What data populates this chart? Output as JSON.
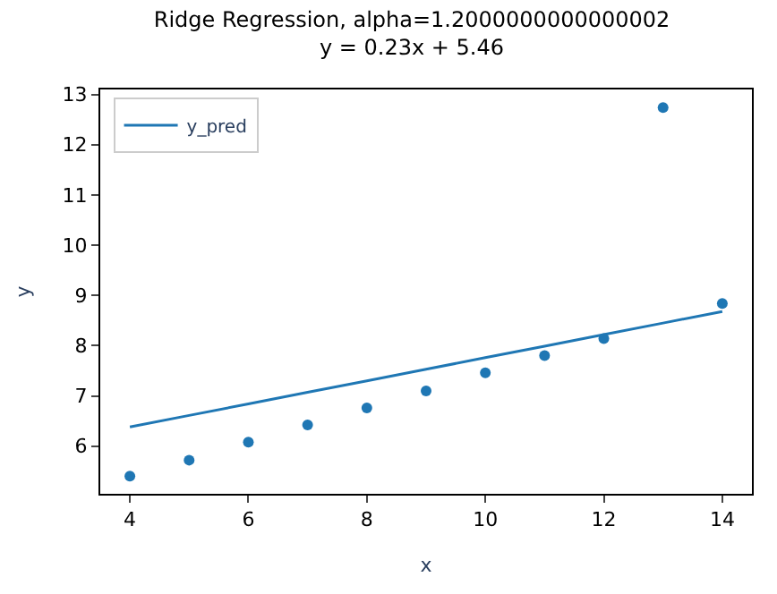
{
  "chart_data": {
    "type": "scatter",
    "title": "Ridge Regression, alpha=1.2000000000000002",
    "subtitle": "y = 0.23x + 5.46",
    "xlabel": "x",
    "ylabel": "y",
    "x": [
      4,
      5,
      6,
      7,
      8,
      9,
      10,
      11,
      12,
      13,
      14
    ],
    "series": [
      {
        "type": "line",
        "name": "y_pred",
        "color": "#1f77b4",
        "marker": "none",
        "values": [
          6.38,
          6.61,
          6.84,
          7.07,
          7.3,
          7.53,
          7.76,
          7.99,
          8.22,
          8.45,
          8.68
        ]
      },
      {
        "color": "#1f77b4",
        "marker": "circle",
        "values": [
          5.4,
          5.72,
          6.08,
          6.42,
          6.76,
          7.1,
          7.46,
          7.8,
          8.14,
          12.74,
          8.84
        ]
      }
    ],
    "xlim": [
      3.5,
      14.5
    ],
    "ylim": [
      5.05,
      13.1
    ],
    "xticks": [
      4,
      6,
      8,
      10,
      12,
      14
    ],
    "yticks": [
      6,
      7,
      8,
      9,
      10,
      11,
      12,
      13
    ],
    "legend": "top left"
  }
}
